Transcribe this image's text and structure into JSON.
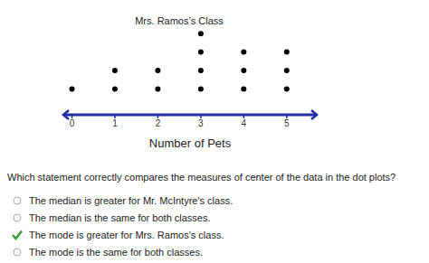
{
  "chart_data": {
    "type": "dot",
    "title": "Mrs. Ramos’s Class",
    "x": [
      0,
      1,
      2,
      3,
      4,
      5
    ],
    "values": [
      1,
      2,
      2,
      4,
      3,
      3
    ],
    "xlabel": "Number of Pets",
    "xlim": [
      -0.2,
      5.7
    ],
    "xticks": [
      0,
      1,
      2,
      3,
      4,
      5
    ],
    "color": "#000000",
    "tick_labels": "x",
    "grid": false
  },
  "question": "Which statement correctly compares the measures of center of the data in the dot plots?",
  "options": [
    {
      "text": "The median is greater for Mr. McIntyre's class.",
      "selected": false
    },
    {
      "text": "The median is the same for both classes.",
      "selected": false
    },
    {
      "text": "The mode is greater for Mrs. Ramos's class.",
      "selected": true
    },
    {
      "text": "The mode is the same for both classes.",
      "selected": false
    }
  ]
}
